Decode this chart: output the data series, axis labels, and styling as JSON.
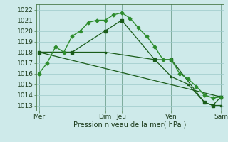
{
  "bg_color": "#ceeaea",
  "grid_color": "#9dcaca",
  "line_color_dark": "#1a5c1a",
  "line_color_light": "#2d8c2d",
  "ylabel_text": "Pression niveau de la mer( hPa )",
  "ylim": [
    1012.5,
    1022.5
  ],
  "yticks": [
    1013,
    1014,
    1015,
    1016,
    1017,
    1018,
    1019,
    1020,
    1021,
    1022
  ],
  "xtick_labels": [
    "Mer",
    "Dim",
    "Jeu",
    "Ven",
    "Sam"
  ],
  "xtick_positions": [
    0,
    8,
    10,
    16,
    22
  ],
  "vline_positions": [
    0,
    8,
    10,
    16,
    22
  ],
  "series1_x": [
    0,
    1,
    2,
    3,
    4,
    5,
    6,
    7,
    8,
    9,
    10,
    11,
    12,
    13,
    14,
    15,
    16,
    17,
    18,
    19,
    20,
    21,
    22
  ],
  "series1_y": [
    1016.0,
    1017.0,
    1018.5,
    1018.0,
    1019.5,
    1020.0,
    1020.8,
    1021.0,
    1021.0,
    1021.5,
    1021.7,
    1021.2,
    1020.3,
    1019.5,
    1018.5,
    1017.3,
    1017.3,
    1016.0,
    1015.5,
    1014.8,
    1014.0,
    1013.7,
    1013.8
  ],
  "series2_x": [
    0,
    4,
    8,
    10,
    14,
    16,
    20,
    21,
    22
  ],
  "series2_y": [
    1018.0,
    1018.0,
    1020.0,
    1021.0,
    1017.3,
    1017.3,
    1013.3,
    1013.0,
    1013.8
  ],
  "series3_x": [
    0,
    22
  ],
  "series3_y": [
    1018.0,
    1013.8
  ],
  "series4_x": [
    0,
    4,
    8,
    14,
    16,
    18,
    20,
    21,
    22
  ],
  "series4_y": [
    1018.0,
    1018.0,
    1018.0,
    1017.3,
    1015.7,
    1015.0,
    1013.3,
    1013.0,
    1013.0
  ]
}
